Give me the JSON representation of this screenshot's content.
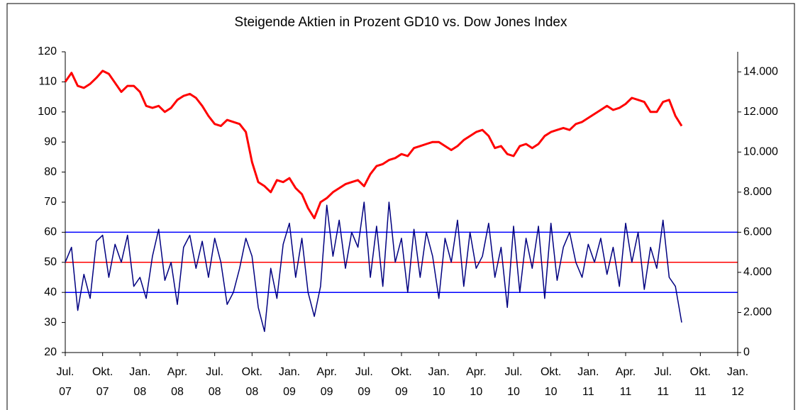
{
  "chart_data": {
    "type": "line",
    "title": "Steigende Aktien in Prozent GD10 vs. Dow Jones Index",
    "x": [
      0,
      0.5,
      1,
      1.5,
      2,
      2.5,
      3,
      3.5,
      4,
      4.5,
      5,
      5.5,
      6,
      6.5,
      7,
      7.5,
      8,
      8.5,
      9,
      9.5,
      10,
      10.5,
      11,
      11.5,
      12,
      12.5,
      13,
      13.5,
      14,
      14.5,
      15,
      15.5,
      16,
      16.5,
      17,
      17.5,
      18,
      18.5,
      19,
      19.5,
      20,
      20.5,
      21,
      21.5,
      22,
      22.5,
      23,
      23.5,
      24,
      24.5,
      25,
      25.5,
      26,
      26.5,
      27,
      27.5,
      28,
      28.5,
      29,
      29.5,
      30,
      30.5,
      31,
      31.5,
      32,
      32.5,
      33,
      33.5,
      34,
      34.5,
      35,
      35.5,
      36,
      36.5,
      37,
      37.5,
      38,
      38.5,
      39,
      39.5,
      40,
      40.5,
      41,
      41.5,
      42,
      42.5,
      43,
      43.5,
      44,
      44.5,
      45,
      45.5,
      46,
      46.5,
      47,
      47.5,
      48,
      48.5,
      49,
      49.5
    ],
    "series": [
      {
        "name": "Steigende Aktien in Prozent GD10",
        "color": "#000080",
        "axis": "y",
        "values": [
          50,
          55,
          34,
          46,
          38,
          57,
          59,
          45,
          56,
          50,
          59,
          42,
          45,
          38,
          52,
          61,
          44,
          50,
          36,
          55,
          59,
          48,
          57,
          45,
          58,
          50,
          36,
          40,
          48,
          58,
          52,
          35,
          27,
          48,
          38,
          56,
          63,
          45,
          58,
          40,
          32,
          42,
          69,
          52,
          64,
          48,
          60,
          55,
          70,
          45,
          62,
          42,
          70,
          50,
          58,
          40,
          61,
          45,
          60,
          52,
          38,
          58,
          50,
          64,
          42,
          60,
          48,
          52,
          63,
          45,
          55,
          35,
          62,
          40,
          58,
          48,
          62,
          38,
          63,
          44,
          55,
          60,
          50,
          45,
          56,
          50,
          58,
          46,
          55,
          42,
          63,
          50,
          60,
          41,
          55,
          48,
          64,
          45,
          42,
          30
        ]
      },
      {
        "name": "Dow Jones Index",
        "color": "#ff0000",
        "axis": "y2",
        "values": [
          13500,
          13950,
          13300,
          13200,
          13400,
          13700,
          14050,
          13900,
          13450,
          13000,
          13300,
          13300,
          13000,
          12300,
          12200,
          12300,
          12000,
          12200,
          12600,
          12800,
          12900,
          12700,
          12300,
          11800,
          11400,
          11300,
          11600,
          11500,
          11400,
          11000,
          9500,
          8500,
          8300,
          8000,
          8600,
          8500,
          8700,
          8200,
          7900,
          7200,
          6700,
          7500,
          7700,
          8000,
          8200,
          8400,
          8500,
          8600,
          8300,
          8900,
          9300,
          9400,
          9600,
          9700,
          9900,
          9800,
          10200,
          10300,
          10400,
          10500,
          10500,
          10300,
          10100,
          10300,
          10600,
          10800,
          11000,
          11100,
          10800,
          10200,
          10300,
          9900,
          9800,
          10300,
          10400,
          10200,
          10400,
          10800,
          11000,
          11100,
          11200,
          11100,
          11400,
          11500,
          11700,
          11900,
          12100,
          12300,
          12100,
          12200,
          12400,
          12700,
          12600,
          12500,
          12000,
          12000,
          12500,
          12600,
          11800,
          11300
        ]
      }
    ],
    "reference_lines": [
      {
        "value": 40,
        "color": "#0000ff"
      },
      {
        "value": 50,
        "color": "#ff0000"
      },
      {
        "value": 60,
        "color": "#0000ff"
      }
    ],
    "xlim": [
      0,
      54
    ],
    "xticks": [
      {
        "value": 0,
        "label": [
          "Jul.",
          "07"
        ]
      },
      {
        "value": 3,
        "label": [
          "Okt.",
          "07"
        ]
      },
      {
        "value": 6,
        "label": [
          "Jan.",
          "08"
        ]
      },
      {
        "value": 9,
        "label": [
          "Apr.",
          "08"
        ]
      },
      {
        "value": 12,
        "label": [
          "Jul.",
          "08"
        ]
      },
      {
        "value": 15,
        "label": [
          "Okt.",
          "08"
        ]
      },
      {
        "value": 18,
        "label": [
          "Jan.",
          "09"
        ]
      },
      {
        "value": 21,
        "label": [
          "Apr.",
          "09"
        ]
      },
      {
        "value": 24,
        "label": [
          "Jul.",
          "09"
        ]
      },
      {
        "value": 27,
        "label": [
          "Okt.",
          "09"
        ]
      },
      {
        "value": 30,
        "label": [
          "Jan.",
          "10"
        ]
      },
      {
        "value": 33,
        "label": [
          "Apr.",
          "10"
        ]
      },
      {
        "value": 36,
        "label": [
          "Jul.",
          "10"
        ]
      },
      {
        "value": 39,
        "label": [
          "Okt.",
          "10"
        ]
      },
      {
        "value": 42,
        "label": [
          "Jan.",
          "11"
        ]
      },
      {
        "value": 45,
        "label": [
          "Apr.",
          "11"
        ]
      },
      {
        "value": 48,
        "label": [
          "Jul.",
          "11"
        ]
      },
      {
        "value": 51,
        "label": [
          "Okt.",
          "11"
        ]
      },
      {
        "value": 54,
        "label": [
          "Jan.",
          "12"
        ]
      }
    ],
    "ylim": [
      20,
      120
    ],
    "yticks": [
      20,
      30,
      40,
      50,
      60,
      70,
      80,
      90,
      100,
      110,
      120
    ],
    "y2lim": [
      0,
      15000
    ],
    "y2ticks": [
      0,
      {
        "value": 2000,
        "label": "2.000"
      },
      {
        "value": 4000,
        "label": "4.000"
      },
      {
        "value": 6000,
        "label": "6.000"
      },
      {
        "value": 8000,
        "label": "8.000"
      },
      {
        "value": 10000,
        "label": "10.000"
      },
      {
        "value": 12000,
        "label": "12.000"
      },
      {
        "value": 14000,
        "label": "14.000"
      }
    ]
  }
}
